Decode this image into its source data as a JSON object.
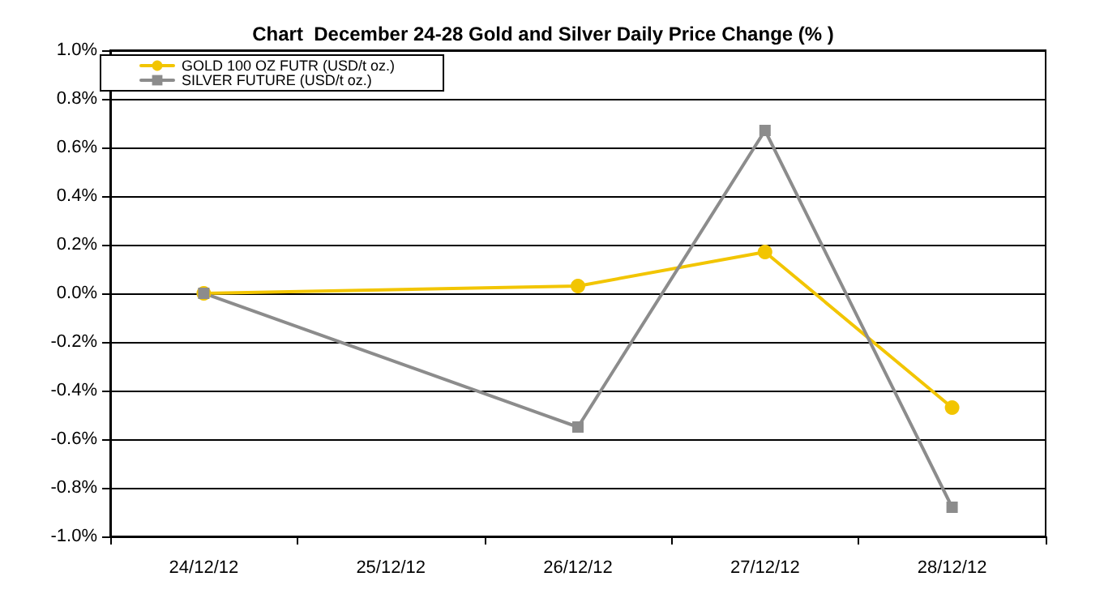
{
  "chart_data": {
    "type": "line",
    "title": "Chart  December 24-28 Gold and Silver Daily Price Change (% )",
    "categories": [
      "24/12/12",
      "25/12/12",
      "26/12/12",
      "27/12/12",
      "28/12/12"
    ],
    "series": [
      {
        "name": "GOLD 100 OZ FUTR (USD/t oz.)",
        "color": "#f2c500",
        "marker": "circle",
        "values": [
          0,
          null,
          0.03,
          0.17,
          -0.47
        ]
      },
      {
        "name": "SILVER FUTURE (USD/t oz.)",
        "color": "#8c8c8c",
        "marker": "square",
        "values": [
          0,
          null,
          -0.55,
          0.67,
          -0.88
        ]
      }
    ],
    "ylim": [
      -1.0,
      1.0
    ],
    "yticks": [
      {
        "value": -1.0,
        "label": "-1.0%"
      },
      {
        "value": -0.8,
        "label": "-0.8%"
      },
      {
        "value": -0.6,
        "label": "-0.6%"
      },
      {
        "value": -0.4,
        "label": "-0.4%"
      },
      {
        "value": -0.2,
        "label": "-0.2%"
      },
      {
        "value": 0,
        "label": "0.0%"
      },
      {
        "value": 0.2,
        "label": "0.2%"
      },
      {
        "value": 0.4,
        "label": "0.4%"
      },
      {
        "value": 0.6,
        "label": "0.6%"
      },
      {
        "value": 0.8,
        "label": "0.8%"
      },
      {
        "value": 1.0,
        "label": "1.0%"
      }
    ],
    "grid": "y",
    "legend": "top left",
    "line_style": "solid"
  }
}
